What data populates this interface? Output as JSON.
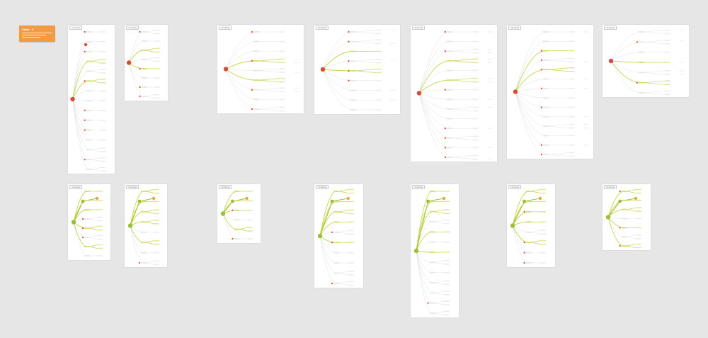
{
  "sticky": {
    "title": "Chart · 0",
    "color": "#f39a45"
  },
  "colors": {
    "canvas": "#e6e6e6",
    "frame": "#ffffff",
    "edge_highlight": "#c6d34a",
    "edge_muted": "#d9d9d9",
    "node_root_red": "#d94a3a",
    "node_root_green": "#9bbf3a",
    "node_orange": "#f2a33a",
    "node_small": "#e05a4a"
  },
  "frames": [
    {
      "id": "f1",
      "label": "mindmap",
      "root_color": "red"
    },
    {
      "id": "f2",
      "label": "mindmap",
      "root_color": "red"
    },
    {
      "id": "f3",
      "label": "mindmap",
      "root_color": "red"
    },
    {
      "id": "f4",
      "label": "mindmap",
      "root_color": "red"
    },
    {
      "id": "f5",
      "label": "mindmap",
      "root_color": "red"
    },
    {
      "id": "f6",
      "label": "mindmap",
      "root_color": "red"
    },
    {
      "id": "f7",
      "label": "mindmap",
      "root_color": "red"
    },
    {
      "id": "f8",
      "label": "mindmap",
      "root_color": "green"
    },
    {
      "id": "f9",
      "label": "mindmap",
      "root_color": "green"
    },
    {
      "id": "f10",
      "label": "mindmap",
      "root_color": "green"
    },
    {
      "id": "f11",
      "label": "mindmap",
      "root_color": "green"
    },
    {
      "id": "f12",
      "label": "mindmap",
      "root_color": "green"
    },
    {
      "id": "f13",
      "label": "mindmap",
      "root_color": "green"
    },
    {
      "id": "f14",
      "label": "mindmap",
      "root_color": "green"
    }
  ]
}
